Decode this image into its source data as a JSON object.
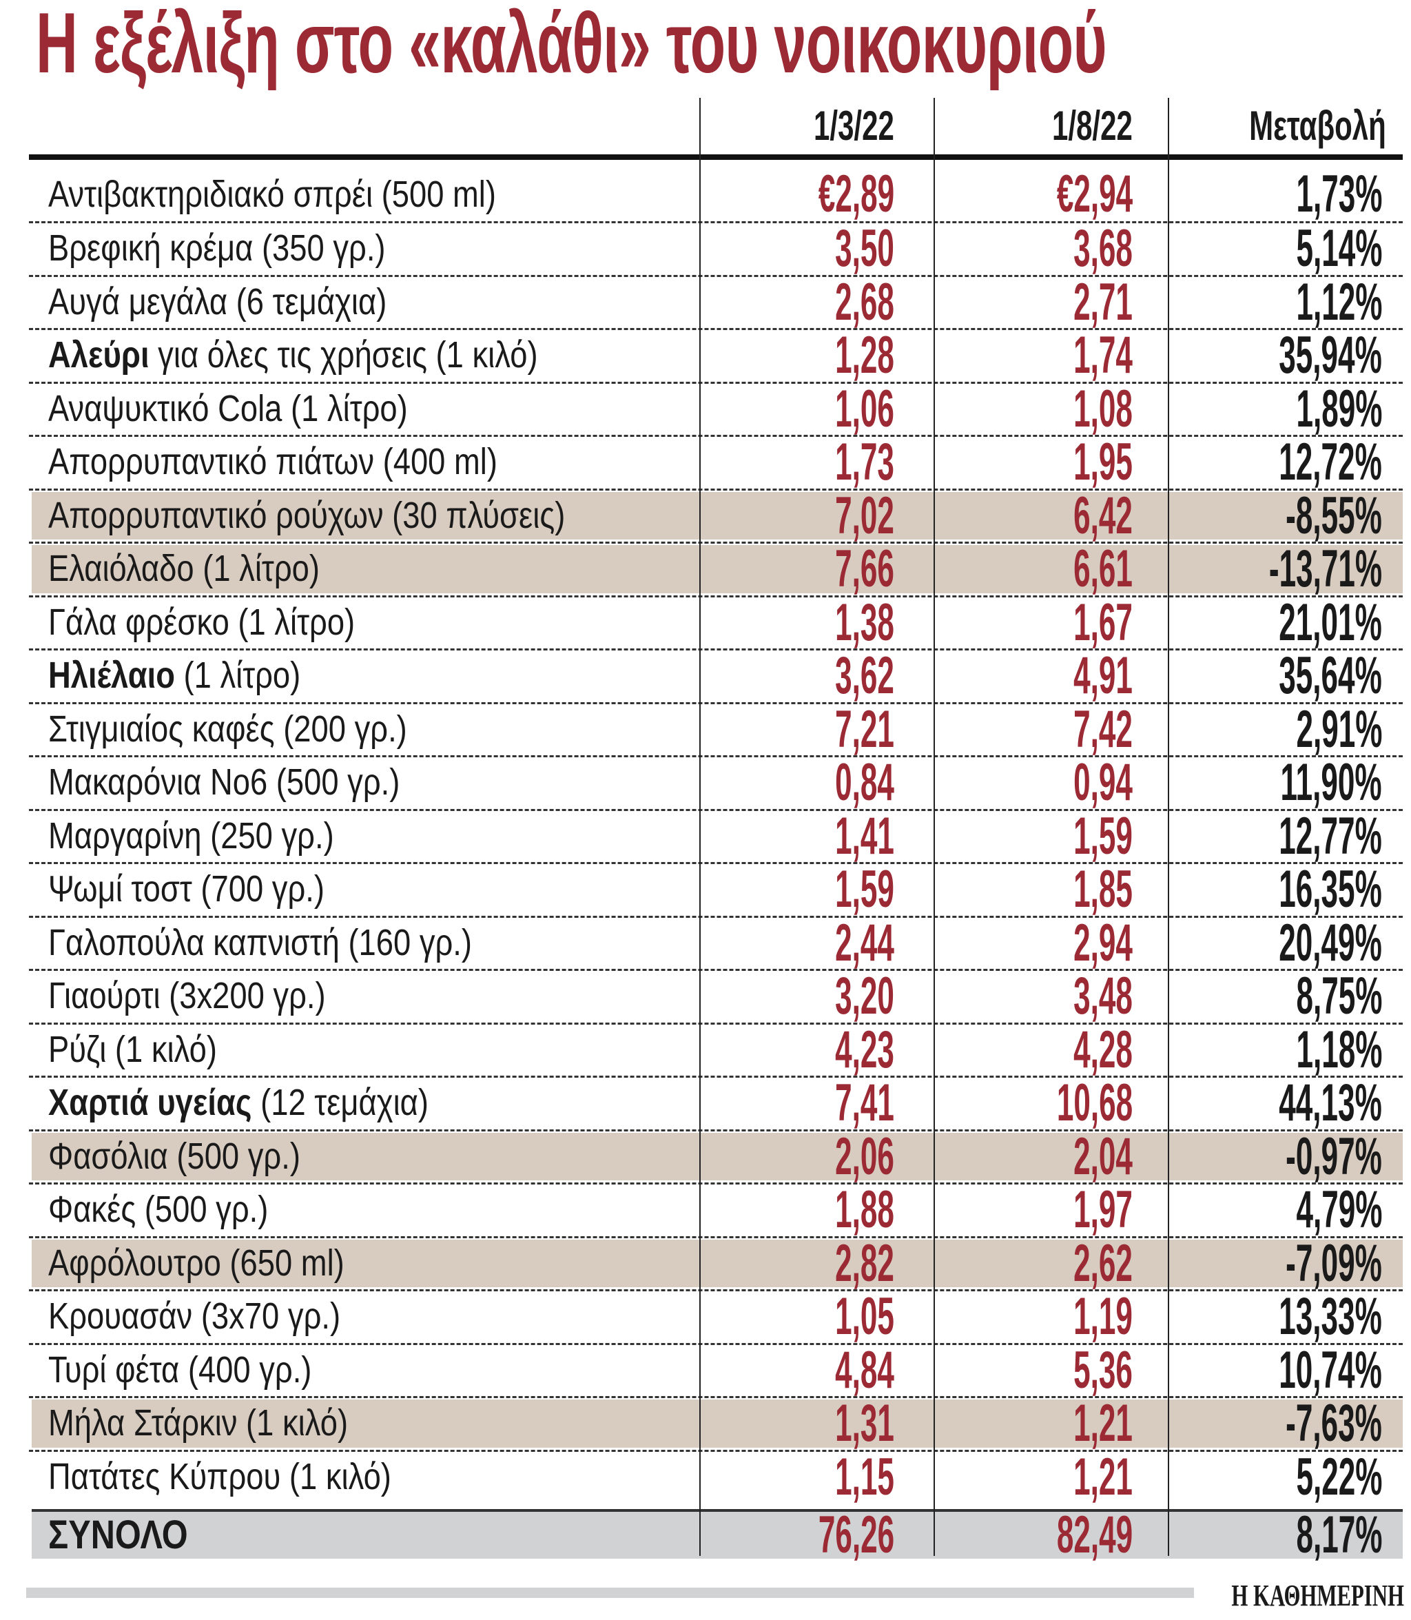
{
  "title": "Η εξέλιξη στο «καλάθι» του νοικοκυριού",
  "columns": {
    "c1": "1/3/22",
    "c2": "1/8/22",
    "c3": "Μεταβολή"
  },
  "colors": {
    "accent_red": "#9b2a34",
    "highlight": "#d8cbbf",
    "total_bg": "#d1d2d4"
  },
  "rows": [
    {
      "bold": "",
      "label": "Αντιβακτηριδιακό σπρέι (500 ml)",
      "v1": "€2,89",
      "v2": "€2,94",
      "change": "1,73%",
      "highlight": false
    },
    {
      "bold": "",
      "label": "Βρεφική κρέμα (350 γρ.)",
      "v1": "3,50",
      "v2": "3,68",
      "change": "5,14%",
      "highlight": false
    },
    {
      "bold": "",
      "label": "Αυγά μεγάλα (6 τεμάχια)",
      "v1": "2,68",
      "v2": "2,71",
      "change": "1,12%",
      "highlight": false
    },
    {
      "bold": "Αλεύρι",
      "label": " για όλες τις χρήσεις (1 κιλό)",
      "v1": "1,28",
      "v2": "1,74",
      "change": "35,94%",
      "highlight": false
    },
    {
      "bold": "",
      "label": "Αναψυκτικό Cola (1 λίτρο)",
      "v1": "1,06",
      "v2": "1,08",
      "change": "1,89%",
      "highlight": false
    },
    {
      "bold": "",
      "label": "Απορρυπαντικό πιάτων (400 ml)",
      "v1": "1,73",
      "v2": "1,95",
      "change": "12,72%",
      "highlight": false
    },
    {
      "bold": "",
      "label": "Απορρυπαντικό ρούχων (30 πλύσεις)",
      "v1": "7,02",
      "v2": "6,42",
      "change": "-8,55%",
      "highlight": true
    },
    {
      "bold": "",
      "label": "Ελαιόλαδο (1 λίτρο)",
      "v1": "7,66",
      "v2": "6,61",
      "change": "-13,71%",
      "highlight": true
    },
    {
      "bold": "",
      "label": "Γάλα φρέσκο (1 λίτρο)",
      "v1": "1,38",
      "v2": "1,67",
      "change": "21,01%",
      "highlight": false
    },
    {
      "bold": "Ηλιέλαιο",
      "label": " (1 λίτρο)",
      "v1": "3,62",
      "v2": "4,91",
      "change": "35,64%",
      "highlight": false
    },
    {
      "bold": "",
      "label": "Στιγμιαίος καφές (200 γρ.)",
      "v1": "7,21",
      "v2": "7,42",
      "change": "2,91%",
      "highlight": false
    },
    {
      "bold": "",
      "label": "Μακαρόνια Νο6 (500 γρ.)",
      "v1": "0,84",
      "v2": "0,94",
      "change": "11,90%",
      "highlight": false
    },
    {
      "bold": "",
      "label": "Μαργαρίνη (250 γρ.)",
      "v1": "1,41",
      "v2": "1,59",
      "change": "12,77%",
      "highlight": false
    },
    {
      "bold": "",
      "label": "Ψωμί τοστ (700 γρ.)",
      "v1": "1,59",
      "v2": "1,85",
      "change": "16,35%",
      "highlight": false
    },
    {
      "bold": "",
      "label": "Γαλοπούλα καπνιστή (160 γρ.)",
      "v1": "2,44",
      "v2": "2,94",
      "change": "20,49%",
      "highlight": false
    },
    {
      "bold": "",
      "label": "Γιαούρτι (3x200 γρ.)",
      "v1": "3,20",
      "v2": "3,48",
      "change": "8,75%",
      "highlight": false
    },
    {
      "bold": "",
      "label": "Ρύζι (1 κιλό)",
      "v1": "4,23",
      "v2": "4,28",
      "change": "1,18%",
      "highlight": false
    },
    {
      "bold": "Χαρτιά υγείας",
      "label": " (12 τεμάχια)",
      "v1": "7,41",
      "v2": "10,68",
      "change": "44,13%",
      "highlight": false
    },
    {
      "bold": "",
      "label": "Φασόλια (500 γρ.)",
      "v1": "2,06",
      "v2": "2,04",
      "change": "-0,97%",
      "highlight": true
    },
    {
      "bold": "",
      "label": "Φακές (500 γρ.)",
      "v1": "1,88",
      "v2": "1,97",
      "change": "4,79%",
      "highlight": false
    },
    {
      "bold": "",
      "label": "Αφρόλουτρο (650 ml)",
      "v1": "2,82",
      "v2": "2,62",
      "change": "-7,09%",
      "highlight": true
    },
    {
      "bold": "",
      "label": "Κρουασάν (3x70 γρ.)",
      "v1": "1,05",
      "v2": "1,19",
      "change": "13,33%",
      "highlight": false
    },
    {
      "bold": "",
      "label": "Τυρί φέτα (400 γρ.)",
      "v1": "4,84",
      "v2": "5,36",
      "change": "10,74%",
      "highlight": false
    },
    {
      "bold": "",
      "label": "Μήλα Στάρκιν (1 κιλό)",
      "v1": "1,31",
      "v2": "1,21",
      "change": "-7,63%",
      "highlight": true
    },
    {
      "bold": "",
      "label": "Πατάτες Κύπρου (1 κιλό)",
      "v1": "1,15",
      "v2": "1,21",
      "change": "5,22%",
      "highlight": false
    }
  ],
  "total": {
    "label": "ΣΥΝΟΛΟ",
    "v1": "76,26",
    "v2": "82,49",
    "change": "8,17%"
  },
  "footer": {
    "brand": "Η ΚΑΘΗΜΕΡΙΝΗ"
  }
}
